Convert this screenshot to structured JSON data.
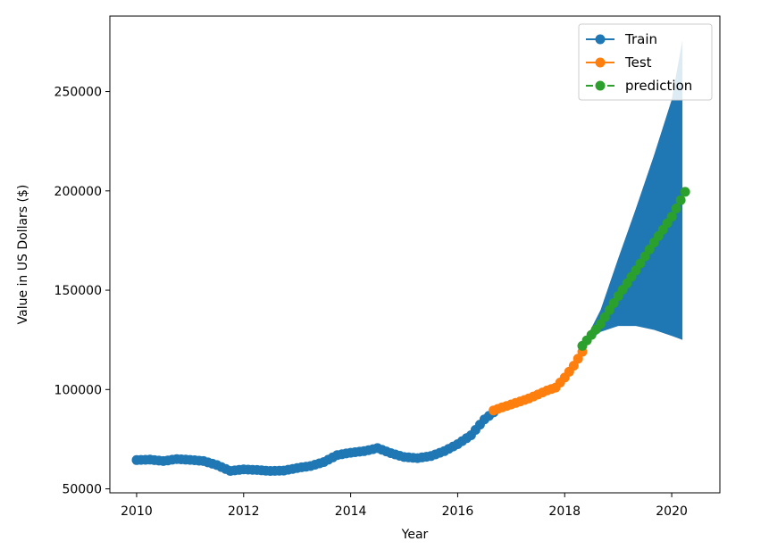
{
  "chart_data": {
    "type": "line",
    "title": "",
    "xlabel": "Year",
    "ylabel": "Value in US Dollars ($)",
    "xlim": [
      2009.5,
      2020.9
    ],
    "ylim": [
      48000,
      288000
    ],
    "x_ticks": [
      "2010",
      "2012",
      "2014",
      "2016",
      "2018",
      "2020"
    ],
    "y_ticks": [
      "50000",
      "100000",
      "150000",
      "200000",
      "250000"
    ],
    "grid": false,
    "legend": {
      "position": "top-right",
      "entries": [
        "Train",
        "Test",
        "prediction"
      ]
    },
    "colors": {
      "train": "#1f77b4",
      "test": "#ff7f0e",
      "prediction": "#2ca02c",
      "band": "#1f77b4"
    },
    "series": [
      {
        "name": "Train",
        "style": "solid-marker",
        "points": [
          [
            2010.0,
            64500
          ],
          [
            2010.25,
            64700
          ],
          [
            2010.5,
            64000
          ],
          [
            2010.75,
            65000
          ],
          [
            2011.0,
            64600
          ],
          [
            2011.25,
            64000
          ],
          [
            2011.5,
            62000
          ],
          [
            2011.75,
            59000
          ],
          [
            2012.0,
            59800
          ],
          [
            2012.25,
            59500
          ],
          [
            2012.5,
            59000
          ],
          [
            2012.75,
            59200
          ],
          [
            2013.0,
            60500
          ],
          [
            2013.25,
            61500
          ],
          [
            2013.5,
            63500
          ],
          [
            2013.75,
            67000
          ],
          [
            2014.0,
            68200
          ],
          [
            2014.25,
            69000
          ],
          [
            2014.5,
            70500
          ],
          [
            2014.75,
            68000
          ],
          [
            2015.0,
            66000
          ],
          [
            2015.25,
            65500
          ],
          [
            2015.5,
            66500
          ],
          [
            2015.75,
            69000
          ],
          [
            2016.0,
            72500
          ],
          [
            2016.25,
            77000
          ],
          [
            2016.5,
            85000
          ],
          [
            2016.67,
            88500
          ]
        ]
      },
      {
        "name": "Test",
        "style": "solid-marker",
        "points": [
          [
            2016.67,
            89500
          ],
          [
            2016.83,
            91000
          ],
          [
            2017.0,
            92500
          ],
          [
            2017.17,
            94000
          ],
          [
            2017.33,
            95500
          ],
          [
            2017.5,
            97500
          ],
          [
            2017.67,
            99500
          ],
          [
            2017.83,
            101000
          ],
          [
            2018.0,
            106000
          ],
          [
            2018.17,
            112000
          ],
          [
            2018.33,
            119000
          ]
        ]
      },
      {
        "name": "prediction",
        "style": "dashed-marker",
        "points": [
          [
            2018.33,
            122000
          ],
          [
            2018.67,
            133000
          ],
          [
            2019.0,
            147000
          ],
          [
            2019.33,
            160000
          ],
          [
            2019.67,
            174000
          ],
          [
            2020.0,
            187000
          ],
          [
            2020.25,
            199500
          ]
        ]
      }
    ],
    "confidence_band": {
      "x": [
        2018.33,
        2018.67,
        2019.0,
        2019.33,
        2019.67,
        2020.0,
        2020.2
      ],
      "upper": [
        122000,
        140000,
        166000,
        191000,
        218000,
        246000,
        276000
      ],
      "lower": [
        122000,
        129000,
        132000,
        132000,
        130000,
        127000,
        125000
      ]
    }
  }
}
